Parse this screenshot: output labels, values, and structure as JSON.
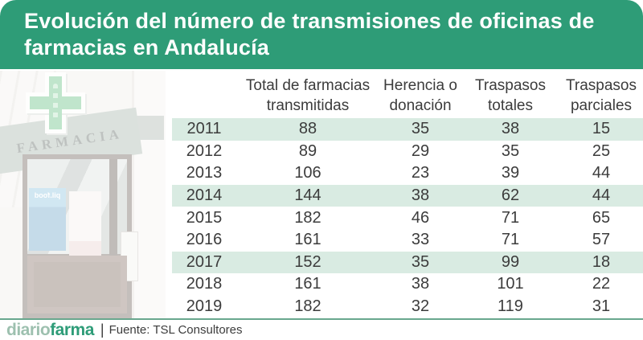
{
  "header": {
    "title_line1": "Evolución del número de transmisiones de oficinas de",
    "title_line2": "farmacias en Andalucía"
  },
  "photo": {
    "sign_text": "FARMACIA",
    "cross_icon": "pharmacy-cross-icon",
    "poster_text": "pil.food"
  },
  "chart_data": {
    "type": "table",
    "title": "Evolución del número de transmisiones de oficinas de farmacias en Andalucía",
    "column_headers": [
      {
        "line1": "",
        "line2": ""
      },
      {
        "line1": "Total de farmacias",
        "line2": "transmitidas"
      },
      {
        "line1": "Herencia o",
        "line2": "donación"
      },
      {
        "line1": "Traspasos",
        "line2": "totales"
      },
      {
        "line1": "Traspasos",
        "line2": "parciales"
      }
    ],
    "rows": [
      {
        "year": "2011",
        "values": [
          "88",
          "35",
          "38",
          "15"
        ],
        "highlighted": true
      },
      {
        "year": "2012",
        "values": [
          "89",
          "29",
          "35",
          "25"
        ],
        "highlighted": false
      },
      {
        "year": "2013",
        "values": [
          "106",
          "23",
          "39",
          "44"
        ],
        "highlighted": false
      },
      {
        "year": "2014",
        "values": [
          "144",
          "38",
          "62",
          "44"
        ],
        "highlighted": true
      },
      {
        "year": "2015",
        "values": [
          "182",
          "46",
          "71",
          "65"
        ],
        "highlighted": false
      },
      {
        "year": "2016",
        "values": [
          "161",
          "33",
          "71",
          "57"
        ],
        "highlighted": false
      },
      {
        "year": "2017",
        "values": [
          "152",
          "35",
          "99",
          "18"
        ],
        "highlighted": true
      },
      {
        "year": "2018",
        "values": [
          "161",
          "38",
          "101",
          "22"
        ],
        "highlighted": false
      },
      {
        "year": "2019",
        "values": [
          "182",
          "32",
          "119",
          "31"
        ],
        "highlighted": false
      }
    ],
    "legend_position": "none",
    "grid": false
  },
  "footer": {
    "logo_part1": "diario",
    "logo_part2": "farma",
    "separator": "|",
    "source": "Fuente: TSL Consultores"
  },
  "colors": {
    "brand_green": "#2E9C77",
    "row_highlight": "#D9EBE2",
    "text_dark": "#3C3C3C",
    "footer_rule_green": "#69A78E",
    "logo_light_green": "#9DC0AF"
  }
}
